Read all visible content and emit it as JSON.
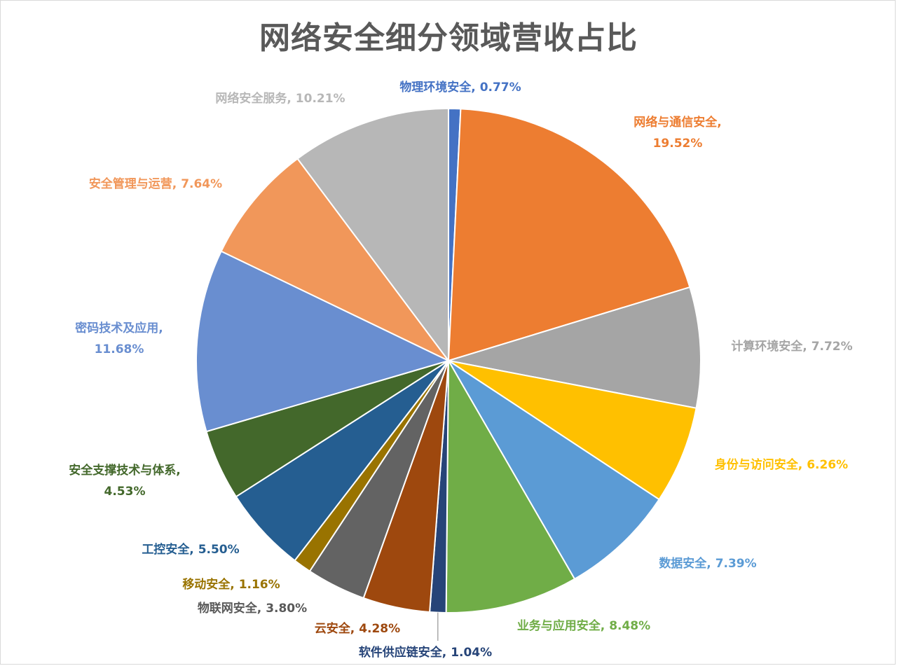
{
  "chart_data": {
    "type": "pie",
    "title": "网络安全细分领域营收占比",
    "slices": [
      {
        "label": "物理环境安全",
        "value": 0.77,
        "display": "0.77%",
        "color": "#4472C4",
        "text_color": "#4472C4"
      },
      {
        "label": "网络与通信安全",
        "value": 19.52,
        "display": "19.52%",
        "color": "#ED7D31",
        "text_color": "#ED7D31"
      },
      {
        "label": "计算环境安全",
        "value": 7.72,
        "display": "7.72%",
        "color": "#A5A5A5",
        "text_color": "#A5A5A5"
      },
      {
        "label": "身份与访问安全",
        "value": 6.26,
        "display": "6.26%",
        "color": "#FFC000",
        "text_color": "#FFC000"
      },
      {
        "label": "数据安全",
        "value": 7.39,
        "display": "7.39%",
        "color": "#5B9BD5",
        "text_color": "#5B9BD5"
      },
      {
        "label": "业务与应用安全",
        "value": 8.48,
        "display": "8.48%",
        "color": "#70AD47",
        "text_color": "#70AD47"
      },
      {
        "label": "软件供应链安全",
        "value": 1.04,
        "display": "1.04%",
        "color": "#264478",
        "text_color": "#264478"
      },
      {
        "label": "云安全",
        "value": 4.28,
        "display": "4.28%",
        "color": "#9E480E",
        "text_color": "#9E480E"
      },
      {
        "label": "物联网安全",
        "value": 3.8,
        "display": "3.80%",
        "color": "#636363",
        "text_color": "#595959"
      },
      {
        "label": "移动安全",
        "value": 1.16,
        "display": "1.16%",
        "color": "#997300",
        "text_color": "#997300"
      },
      {
        "label": "工控安全",
        "value": 5.5,
        "display": "5.50%",
        "color": "#255E91",
        "text_color": "#255E91"
      },
      {
        "label": "安全支撑技术与体系",
        "value": 4.53,
        "display": "4.53%",
        "color": "#43682B",
        "text_color": "#43682B"
      },
      {
        "label": "密码技术及应用",
        "value": 11.68,
        "display": "11.68%",
        "color": "#698ED0",
        "text_color": "#698ED0"
      },
      {
        "label": "安全管理与运营",
        "value": 7.64,
        "display": "7.64%",
        "color": "#F1975A",
        "text_color": "#F1975A"
      },
      {
        "label": "网络安全服务",
        "value": 10.21,
        "display": "10.21%",
        "color": "#B7B7B7",
        "text_color": "#B7B7B7"
      }
    ],
    "legend": "none",
    "data_labels": "category-name-and-percent"
  }
}
